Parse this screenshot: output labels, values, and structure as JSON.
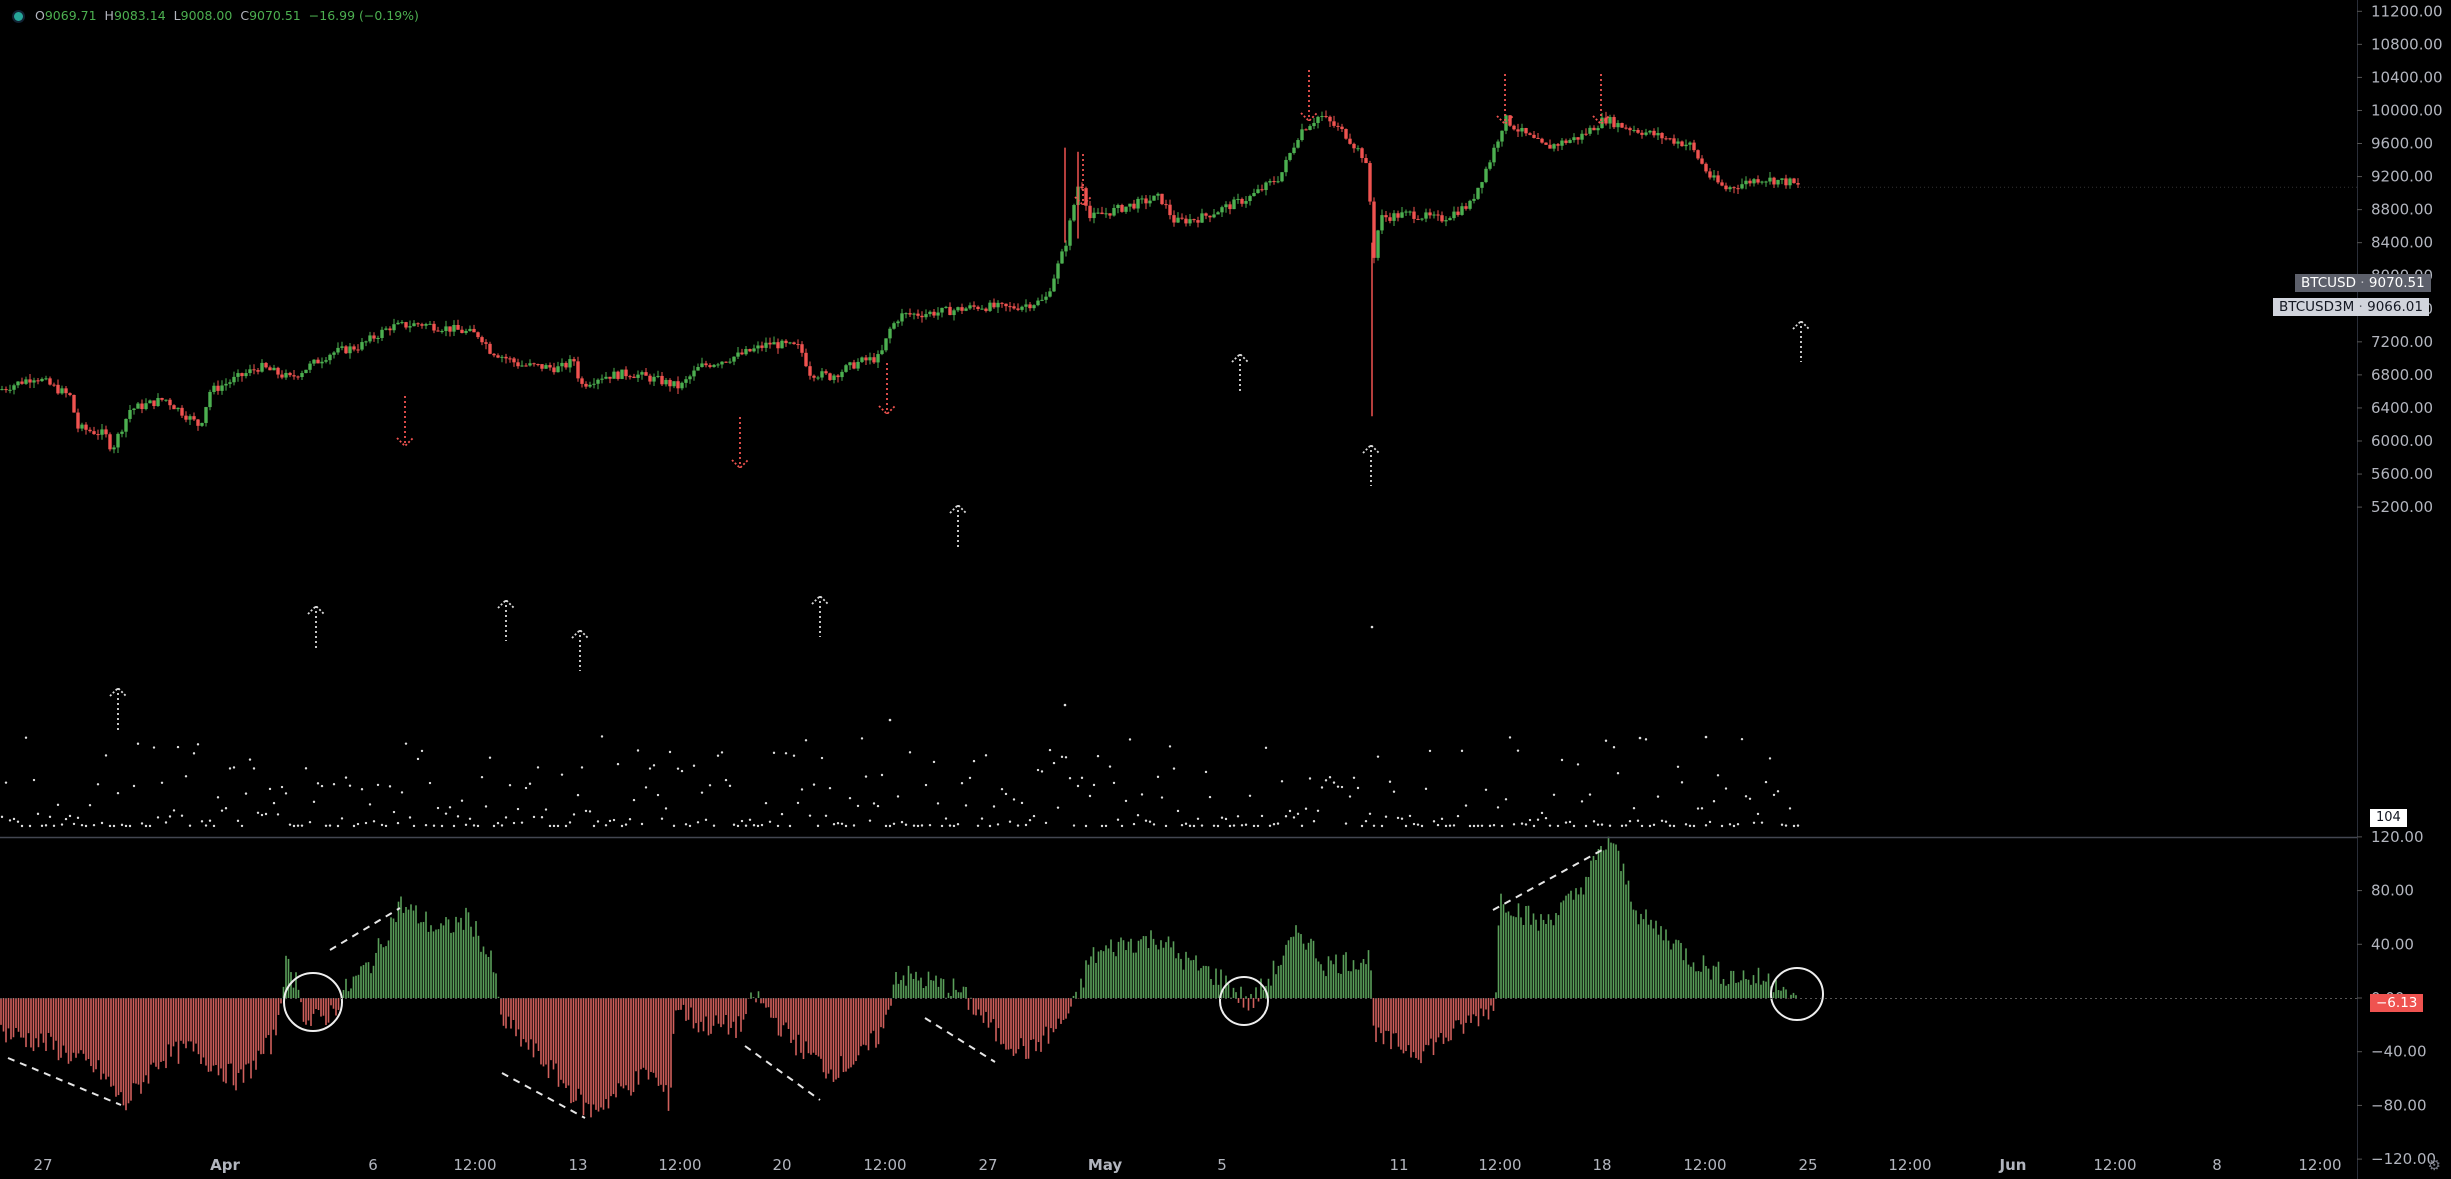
{
  "legend": {
    "open_label": "O",
    "open": "9069.71",
    "high_label": "H",
    "high": "9083.14",
    "low_label": "L",
    "low": "9008.00",
    "close_label": "C",
    "close": "9070.51",
    "change": "−16.99 (−0.19%)"
  },
  "price_scale": {
    "labels": [
      "11200.00",
      "10800.00",
      "10400.00",
      "10000.00",
      "9600.00",
      "9200.00",
      "8800.00",
      "8400.00",
      "8000.00",
      "7600.00",
      "7200.00",
      "6800.00",
      "6400.00",
      "6000.00",
      "5600.00",
      "5200.00"
    ],
    "values": [
      11200,
      10800,
      10400,
      10000,
      9600,
      9200,
      8800,
      8400,
      8000,
      7600,
      7200,
      6800,
      6400,
      6000,
      5600,
      5200
    ]
  },
  "oscillator_scale": {
    "labels": [
      "120.00",
      "80.00",
      "40.00",
      "0.00",
      "−40.00",
      "−80.00",
      "−120.00"
    ],
    "values": [
      120,
      80,
      40,
      0,
      -40,
      -80,
      -120
    ]
  },
  "time_axis": {
    "labels": [
      "27",
      "Apr",
      "6",
      "12:00",
      "13",
      "12:00",
      "20",
      "12:00",
      "27",
      "May",
      "5",
      "11",
      "12:00",
      "18",
      "12:00",
      "25",
      "12:00",
      "Jun",
      "12:00",
      "8",
      "12:00"
    ],
    "bold": [
      false,
      true,
      false,
      false,
      false,
      false,
      false,
      false,
      false,
      true,
      false,
      false,
      false,
      false,
      false,
      false,
      false,
      true,
      false,
      false,
      false
    ]
  },
  "tags": {
    "btcusd_name": "BTCUSD",
    "btcusd_price": "9070.51",
    "btcusd3m_name": "BTCUSD3M",
    "btcusd3m_price": "9066.01",
    "volume_value": "104",
    "osc_value": "−6.13"
  },
  "colors": {
    "background": "#000000",
    "up": "#4caf50",
    "down": "#ef5350",
    "hist_up": "#5a9f5a",
    "hist_down": "#d0605c",
    "axis_text": "#b2b5be",
    "arrow_down": "#ef5350",
    "arrow_up": "#d9d9d9"
  },
  "chart_data": [
    {
      "type": "candlestick",
      "symbol": "BTCUSD",
      "ylim": [
        5000,
        11400
      ],
      "path": [
        [
          0,
          6620
        ],
        [
          35,
          6780
        ],
        [
          70,
          6540
        ],
        [
          78,
          6160
        ],
        [
          105,
          6080
        ],
        [
          112,
          5900
        ],
        [
          130,
          6380
        ],
        [
          165,
          6510
        ],
        [
          200,
          6180
        ],
        [
          210,
          6600
        ],
        [
          260,
          6900
        ],
        [
          290,
          6760
        ],
        [
          330,
          7060
        ],
        [
          360,
          7150
        ],
        [
          390,
          7380
        ],
        [
          420,
          7420
        ],
        [
          450,
          7360
        ],
        [
          480,
          7280
        ],
        [
          490,
          7100
        ],
        [
          520,
          6920
        ],
        [
          560,
          6880
        ],
        [
          575,
          6980
        ],
        [
          580,
          6670
        ],
        [
          600,
          6780
        ],
        [
          630,
          6820
        ],
        [
          660,
          6730
        ],
        [
          680,
          6650
        ],
        [
          700,
          6900
        ],
        [
          740,
          7040
        ],
        [
          770,
          7180
        ],
        [
          800,
          7130
        ],
        [
          810,
          6830
        ],
        [
          830,
          6780
        ],
        [
          860,
          6960
        ],
        [
          880,
          7010
        ],
        [
          890,
          7350
        ],
        [
          900,
          7520
        ],
        [
          940,
          7560
        ],
        [
          980,
          7630
        ],
        [
          1010,
          7610
        ],
        [
          1045,
          7700
        ],
        [
          1065,
          8350
        ],
        [
          1080,
          9200
        ],
        [
          1090,
          8700
        ],
        [
          1130,
          8850
        ],
        [
          1160,
          8950
        ],
        [
          1175,
          8650
        ],
        [
          1200,
          8700
        ],
        [
          1250,
          8950
        ],
        [
          1280,
          9200
        ],
        [
          1300,
          9750
        ],
        [
          1320,
          9940
        ],
        [
          1345,
          9720
        ],
        [
          1365,
          9420
        ],
        [
          1370,
          8900
        ],
        [
          1372,
          8100
        ],
        [
          1380,
          8700
        ],
        [
          1410,
          8750
        ],
        [
          1440,
          8680
        ],
        [
          1470,
          8860
        ],
        [
          1490,
          9400
        ],
        [
          1505,
          9900
        ],
        [
          1520,
          9750
        ],
        [
          1545,
          9550
        ],
        [
          1580,
          9680
        ],
        [
          1605,
          9900
        ],
        [
          1620,
          9820
        ],
        [
          1650,
          9720
        ],
        [
          1690,
          9580
        ],
        [
          1710,
          9200
        ],
        [
          1725,
          9050
        ],
        [
          1760,
          9180
        ],
        [
          1790,
          9130
        ],
        [
          1800,
          9070
        ]
      ]
    },
    {
      "type": "volume_scatter",
      "values_shown": "104"
    },
    {
      "type": "histogram",
      "ylim": [
        -140,
        140
      ],
      "path": [
        [
          0,
          -25
        ],
        [
          50,
          -35
        ],
        [
          100,
          -55
        ],
        [
          125,
          -80
        ],
        [
          160,
          -45
        ],
        [
          190,
          -38
        ],
        [
          240,
          -62
        ],
        [
          275,
          -30
        ],
        [
          285,
          25
        ],
        [
          300,
          10
        ],
        [
          305,
          -20
        ],
        [
          330,
          -12
        ],
        [
          345,
          5
        ],
        [
          375,
          30
        ],
        [
          400,
          70
        ],
        [
          440,
          50
        ],
        [
          470,
          60
        ],
        [
          495,
          20
        ],
        [
          500,
          -15
        ],
        [
          540,
          -45
        ],
        [
          590,
          -85
        ],
        [
          620,
          -70
        ],
        [
          650,
          -55
        ],
        [
          670,
          -78
        ],
        [
          675,
          -5
        ],
        [
          700,
          -20
        ],
        [
          740,
          -22
        ],
        [
          755,
          2
        ],
        [
          790,
          -30
        ],
        [
          830,
          -55
        ],
        [
          860,
          -45
        ],
        [
          885,
          -22
        ],
        [
          895,
          18
        ],
        [
          930,
          12
        ],
        [
          960,
          5
        ],
        [
          1000,
          -30
        ],
        [
          1030,
          -40
        ],
        [
          1060,
          -20
        ],
        [
          1075,
          -5
        ],
        [
          1090,
          30
        ],
        [
          1120,
          40
        ],
        [
          1160,
          45
        ],
        [
          1180,
          30
        ],
        [
          1220,
          15
        ],
        [
          1250,
          -5
        ],
        [
          1265,
          10
        ],
        [
          1300,
          50
        ],
        [
          1325,
          25
        ],
        [
          1370,
          30
        ],
        [
          1375,
          -30
        ],
        [
          1420,
          -40
        ],
        [
          1450,
          -28
        ],
        [
          1495,
          -5
        ],
        [
          1500,
          75
        ],
        [
          1540,
          55
        ],
        [
          1575,
          75
        ],
        [
          1610,
          120
        ],
        [
          1640,
          60
        ],
        [
          1670,
          45
        ],
        [
          1690,
          30
        ],
        [
          1720,
          18
        ],
        [
          1750,
          15
        ],
        [
          1780,
          12
        ],
        [
          1795,
          -4
        ]
      ]
    }
  ]
}
